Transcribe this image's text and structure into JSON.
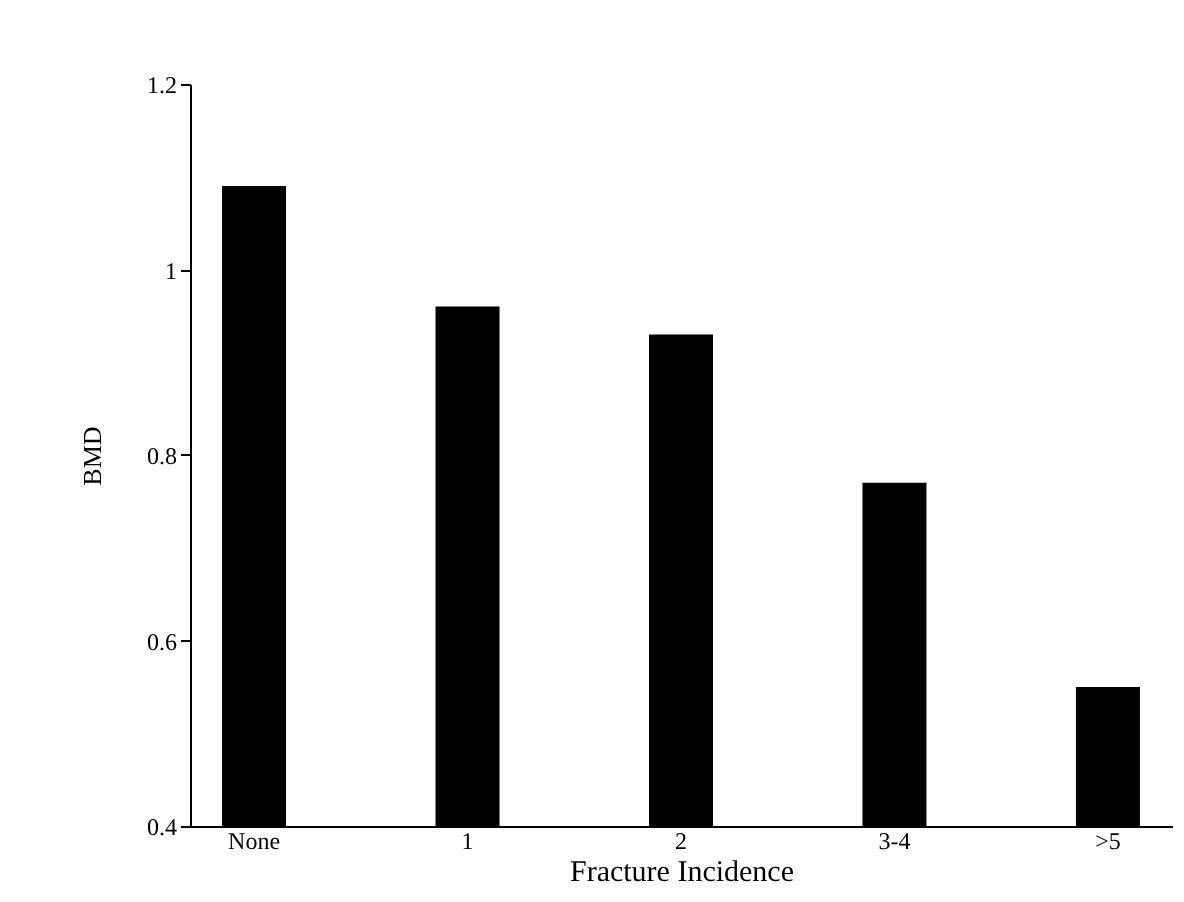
{
  "chart_data": {
    "type": "bar",
    "xlabel": "Fracture Incidence",
    "ylabel": "BMD",
    "categories": [
      "None",
      "1",
      "2",
      "3-4",
      ">5"
    ],
    "values": [
      1.09,
      0.96,
      0.93,
      0.77,
      0.55
    ],
    "color": "#000000",
    "ylim": [
      0.4,
      1.2
    ],
    "yticks": [
      0.4,
      0.6,
      0.8,
      1,
      1.2
    ],
    "grid": false
  }
}
